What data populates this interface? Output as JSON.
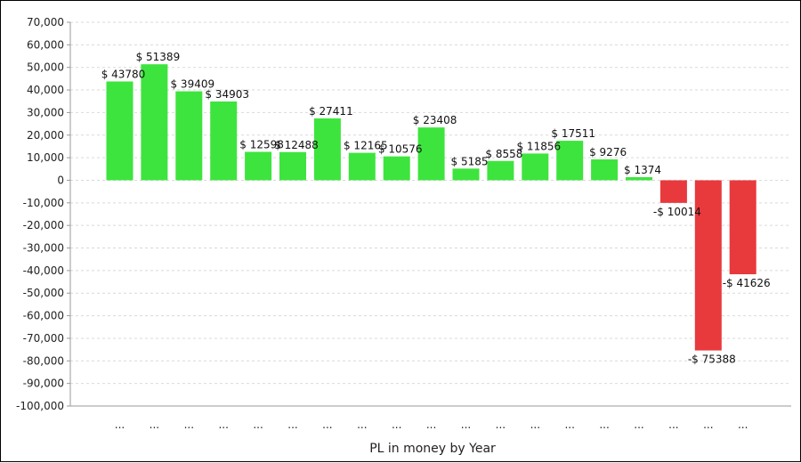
{
  "chart_data": {
    "type": "bar",
    "xlabel": "PL in money by Year",
    "ylabel": "",
    "ylim": [
      -100000,
      70000
    ],
    "ytick_step": 10000,
    "grid": true,
    "categories": [
      "...",
      "...",
      "...",
      "...",
      "...",
      "...",
      "...",
      "...",
      "...",
      "...",
      "...",
      "...",
      "...",
      "...",
      "...",
      "...",
      "...",
      "...",
      "..."
    ],
    "values": [
      43780,
      51389,
      39409,
      34903,
      12598,
      12488,
      27411,
      12165,
      10576,
      23408,
      5185,
      8558,
      11856,
      17511,
      9276,
      1374,
      -10014,
      -75388,
      -41626
    ],
    "data_labels": [
      "$ 43780",
      "$ 51389",
      "$ 39409",
      "$ 34903",
      "$ 12598",
      "$ 12488",
      "$ 27411",
      "$ 12165",
      "$ 10576",
      "$ 23408",
      "$ 5185",
      "$ 8558",
      "$ 11856",
      "$ 17511",
      "$ 9276",
      "$ 1374",
      "-$ 10014",
      "-$ 75388",
      "-$ 41626"
    ],
    "colors": {
      "positive": "#3ee43e",
      "negative": "#e8393d",
      "grid": "#d9d9d9",
      "axis": "#999999"
    }
  }
}
